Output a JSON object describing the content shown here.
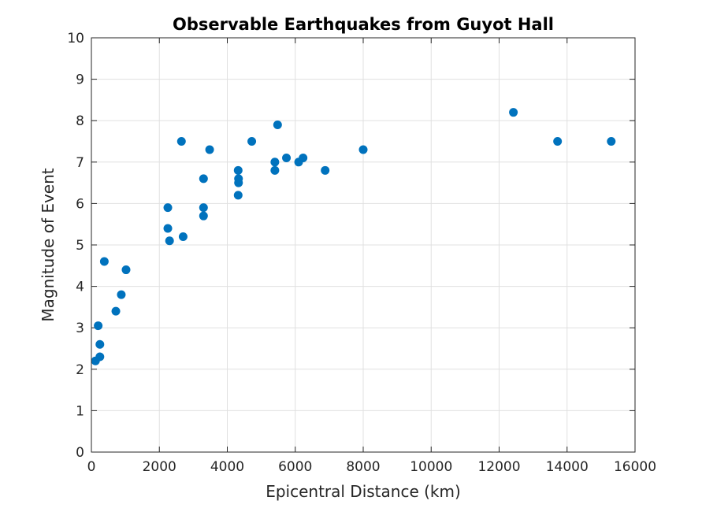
{
  "chart_data": {
    "type": "scatter",
    "title": "Observable Earthquakes from Guyot Hall",
    "xlabel": "Epicentral Distance (km)",
    "ylabel": "Magnitude of Event",
    "xlim": [
      0,
      16000
    ],
    "ylim": [
      0,
      10
    ],
    "xticks": [
      0,
      2000,
      4000,
      6000,
      8000,
      10000,
      12000,
      14000,
      16000
    ],
    "yticks": [
      0,
      1,
      2,
      3,
      4,
      5,
      6,
      7,
      8,
      9,
      10
    ],
    "grid": true,
    "marker_color": "#0072BD",
    "points": [
      {
        "x": 120,
        "y": 2.2
      },
      {
        "x": 250,
        "y": 2.3
      },
      {
        "x": 250,
        "y": 2.6
      },
      {
        "x": 200,
        "y": 3.05
      },
      {
        "x": 380,
        "y": 4.6
      },
      {
        "x": 720,
        "y": 3.4
      },
      {
        "x": 880,
        "y": 3.8
      },
      {
        "x": 1020,
        "y": 4.4
      },
      {
        "x": 2250,
        "y": 5.9
      },
      {
        "x": 2250,
        "y": 5.4
      },
      {
        "x": 2300,
        "y": 5.1
      },
      {
        "x": 2650,
        "y": 7.5
      },
      {
        "x": 2700,
        "y": 5.2
      },
      {
        "x": 3300,
        "y": 6.6
      },
      {
        "x": 3300,
        "y": 5.9
      },
      {
        "x": 3300,
        "y": 5.7
      },
      {
        "x": 3480,
        "y": 7.3
      },
      {
        "x": 4320,
        "y": 6.8
      },
      {
        "x": 4330,
        "y": 6.6
      },
      {
        "x": 4330,
        "y": 6.5
      },
      {
        "x": 4320,
        "y": 6.2
      },
      {
        "x": 4720,
        "y": 7.5
      },
      {
        "x": 5400,
        "y": 7.0
      },
      {
        "x": 5400,
        "y": 6.8
      },
      {
        "x": 5480,
        "y": 7.9
      },
      {
        "x": 5740,
        "y": 7.1
      },
      {
        "x": 6100,
        "y": 7.0
      },
      {
        "x": 6230,
        "y": 7.1
      },
      {
        "x": 6880,
        "y": 6.8
      },
      {
        "x": 8000,
        "y": 7.3
      },
      {
        "x": 12420,
        "y": 8.2
      },
      {
        "x": 13720,
        "y": 7.5
      },
      {
        "x": 15300,
        "y": 7.5
      }
    ]
  }
}
